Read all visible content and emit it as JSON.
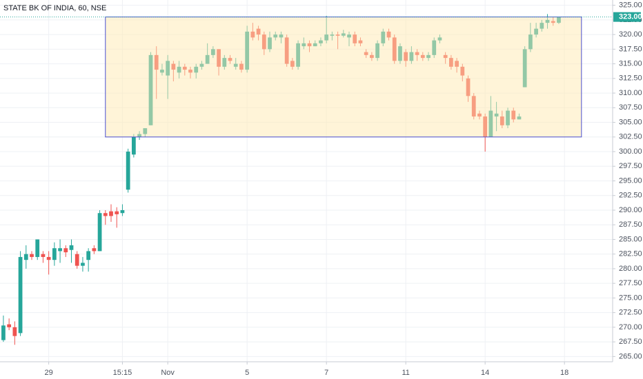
{
  "chart_data": {
    "type": "candlestick",
    "title": "STATE BK OF INDIA, 60, NSE",
    "up_color": "#26a69a",
    "down_color": "#ef5350",
    "grid": true,
    "xlim": [
      -0.6,
      107.5
    ],
    "xticks": [
      {
        "value": 8,
        "label": "29"
      },
      {
        "value": 21,
        "label": "15:15"
      },
      {
        "value": 29,
        "label": "Nov"
      },
      {
        "value": 43,
        "label": "5"
      },
      {
        "value": 57,
        "label": "7"
      },
      {
        "value": 71,
        "label": "11"
      },
      {
        "value": 85,
        "label": "14"
      },
      {
        "value": 99,
        "label": "18"
      }
    ],
    "ylim": [
      264.1,
      325.9
    ],
    "yticks": [
      {
        "value": 265,
        "label": "265.00"
      },
      {
        "value": 267.5,
        "label": "267.50"
      },
      {
        "value": 270,
        "label": "270.00"
      },
      {
        "value": 272.5,
        "label": "272.50"
      },
      {
        "value": 275,
        "label": "275.00"
      },
      {
        "value": 277.5,
        "label": "277.50"
      },
      {
        "value": 280,
        "label": "280.00"
      },
      {
        "value": 282.5,
        "label": "282.50"
      },
      {
        "value": 285,
        "label": "285.00"
      },
      {
        "value": 287.5,
        "label": "287.50"
      },
      {
        "value": 290,
        "label": "290.00"
      },
      {
        "value": 292.5,
        "label": "292.50"
      },
      {
        "value": 295,
        "label": "295.00"
      },
      {
        "value": 297.5,
        "label": "297.50"
      },
      {
        "value": 300,
        "label": "300.00"
      },
      {
        "value": 302.5,
        "label": "302.50"
      },
      {
        "value": 305,
        "label": "305.00"
      },
      {
        "value": 307.5,
        "label": "307.50"
      },
      {
        "value": 310,
        "label": "310.00"
      },
      {
        "value": 312.5,
        "label": "312.50"
      },
      {
        "value": 315,
        "label": "315.00"
      },
      {
        "value": 317.5,
        "label": "317.50"
      },
      {
        "value": 320,
        "label": "320.00"
      },
      {
        "value": 322.5,
        "label": "322.50"
      },
      {
        "value": 325,
        "label": "325.00"
      }
    ],
    "open": [
      267.8,
      270.5,
      270,
      269,
      281.5,
      282.5,
      282,
      282.5,
      282,
      281.5,
      283,
      283.5,
      283.2,
      282.5,
      280.5,
      281.5,
      283.5,
      283,
      289.5,
      289.8,
      289.8,
      289.5,
      293.5,
      299.5,
      302.5,
      303,
      304.5,
      316.5,
      313.5,
      313,
      315,
      313.5,
      314.5,
      314,
      313.5,
      314.5,
      315,
      316.5,
      317.5,
      314.5,
      316,
      314.5,
      315,
      314,
      320.5,
      321,
      320,
      317.5,
      319.5,
      319.5,
      319.5,
      315.5,
      314.5,
      318,
      318.5,
      318,
      318.5,
      319,
      319.8,
      320,
      319.8,
      319.5,
      320,
      319,
      317,
      316.5,
      316,
      318.5,
      320.5,
      319.5,
      315.5,
      317,
      315.5,
      317,
      316.5,
      316,
      316.5,
      319,
      316.5,
      316,
      315.5,
      314.5,
      312.5,
      309.5,
      306.5,
      306,
      302.5,
      306,
      306,
      304.5,
      307,
      305.5,
      311,
      317.5,
      320,
      321,
      322,
      322.3,
      322
    ],
    "high": [
      272,
      271.5,
      271,
      283,
      284,
      283,
      285,
      283,
      283,
      284.5,
      285,
      284,
      285,
      283,
      282,
      283.5,
      284,
      290,
      290,
      291,
      290.5,
      291,
      300.5,
      303,
      303.5,
      304,
      317,
      318,
      315,
      316.5,
      315.5,
      315.5,
      315,
      314.5,
      315,
      315.5,
      318.5,
      318,
      317.5,
      316.5,
      316.5,
      316,
      315.5,
      321.5,
      322,
      321.5,
      320.5,
      320.5,
      320.5,
      320.5,
      320,
      316,
      319,
      319.5,
      319,
      319,
      319.5,
      323.2,
      320.5,
      320.5,
      320.8,
      320.5,
      320.5,
      319.5,
      317.5,
      317,
      319,
      321,
      321,
      320,
      318.5,
      317.5,
      318,
      317.5,
      317,
      317,
      319.5,
      320,
      317,
      316.5,
      316,
      315,
      313,
      310,
      307,
      306.5,
      309.5,
      308.5,
      307,
      307.5,
      307.5,
      306.5,
      318,
      322,
      322,
      322.5,
      323.5,
      323,
      323
    ],
    "low": [
      267.5,
      269.5,
      267,
      268.5,
      280,
      281.5,
      281.5,
      281,
      279,
      280.5,
      281,
      282,
      281,
      280,
      279.5,
      279.5,
      282.5,
      283,
      287.5,
      288,
      287,
      289,
      293,
      299,
      302,
      302.5,
      304.5,
      309,
      313,
      309,
      312,
      312.5,
      313,
      312.5,
      312.5,
      314,
      315,
      316,
      313,
      314,
      315,
      314,
      313.5,
      313.5,
      319,
      319,
      316.5,
      317,
      319,
      318.5,
      314.5,
      314,
      314,
      317.5,
      317,
      318,
      318,
      318.5,
      319,
      317.5,
      319.5,
      318,
      318,
      318,
      316,
      315.5,
      315.5,
      318,
      319,
      315,
      315,
      314.5,
      315,
      315.5,
      315.5,
      315.5,
      316,
      318.5,
      315,
      314,
      313.5,
      312,
      308.5,
      305.5,
      305.5,
      300,
      302.5,
      303.5,
      304,
      304,
      305,
      305.5,
      311,
      317,
      319.5,
      320.5,
      321,
      321.5,
      321.8
    ],
    "close": [
      270.3,
      270,
      268.5,
      282,
      282.5,
      282,
      285,
      282,
      281.5,
      283.5,
      283.5,
      282.8,
      284,
      280.5,
      281,
      283,
      283,
      289.5,
      289,
      289,
      289.3,
      290,
      300,
      302.5,
      303,
      304,
      316.5,
      314,
      314,
      315.5,
      314,
      314.5,
      314,
      313.5,
      314.5,
      315,
      316.5,
      317.5,
      314.5,
      316,
      315.5,
      315,
      314,
      320.5,
      319.5,
      320,
      317.5,
      319.5,
      320,
      320,
      315,
      314.5,
      318.5,
      318.5,
      318,
      318.5,
      319,
      320,
      320,
      319.8,
      320.2,
      320,
      318.5,
      318.5,
      316.5,
      316,
      318.5,
      320.5,
      319.5,
      315.5,
      318,
      315.5,
      317,
      316.5,
      316,
      316.5,
      319,
      319.5,
      316,
      314.5,
      314.5,
      313,
      309.5,
      306,
      306,
      302.5,
      307,
      306.5,
      304.5,
      307,
      305.5,
      306,
      317.5,
      320,
      321,
      322,
      322.5,
      322,
      323
    ],
    "last_price": {
      "value": 323,
      "label": "323.00"
    },
    "annotations": [
      {
        "type": "rectangle",
        "x": [
          18,
          102
        ],
        "y": [
          302.5,
          323
        ]
      }
    ]
  }
}
